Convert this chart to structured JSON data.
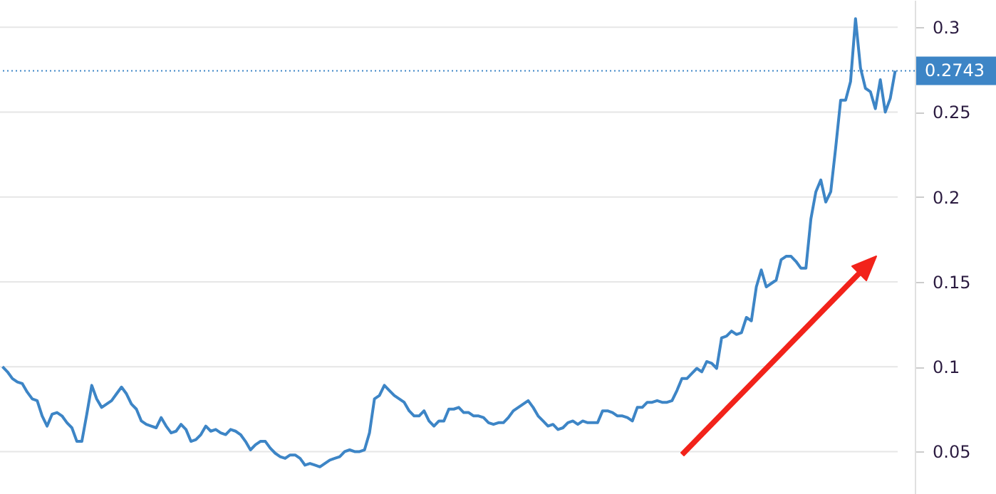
{
  "chart_data": {
    "type": "line",
    "categories": [
      null,
      null,
      null,
      null,
      null,
      null,
      null,
      null,
      null,
      null,
      null,
      null,
      null,
      null,
      null,
      null,
      null,
      null,
      null,
      null,
      null,
      null,
      null,
      null,
      null,
      null,
      null,
      null,
      null,
      null,
      null,
      null,
      null,
      null,
      null,
      null,
      null,
      null,
      null,
      null,
      null,
      null,
      null,
      null,
      null,
      null,
      null,
      null,
      null,
      null,
      null,
      null,
      null,
      null,
      null,
      null,
      null,
      null,
      null,
      null,
      null,
      null,
      null,
      null,
      null,
      null,
      null,
      null,
      null,
      null,
      null,
      null,
      null,
      null,
      null,
      null,
      null,
      null,
      null,
      null,
      null,
      null,
      null,
      null,
      null,
      null,
      null,
      null,
      null,
      null,
      null,
      null,
      null,
      null,
      null,
      null,
      null,
      null,
      null,
      null,
      null,
      null,
      null,
      null,
      null,
      null,
      null,
      null,
      null,
      null,
      null,
      null,
      null,
      null,
      null,
      null,
      null,
      null,
      null,
      null,
      null,
      null,
      null,
      null,
      null,
      null,
      null,
      null,
      null,
      null,
      null,
      null,
      null,
      null,
      null,
      null,
      null,
      null,
      null,
      null,
      null,
      null,
      null,
      null,
      null,
      null,
      null,
      null,
      null,
      null,
      null,
      null,
      null,
      null,
      null,
      null,
      null,
      null,
      null,
      null,
      null,
      null,
      null,
      null,
      null,
      null,
      null,
      null,
      null,
      null,
      null,
      null,
      null,
      null,
      null,
      null,
      null,
      null,
      null,
      null,
      null
    ],
    "series": [
      {
        "color": "#3d85c6",
        "values": [
          0.1,
          0.097,
          0.093,
          0.091,
          0.09,
          0.085,
          0.081,
          0.08,
          0.071,
          0.065,
          0.072,
          0.073,
          0.071,
          0.067,
          0.064,
          0.056,
          0.056,
          0.072,
          0.089,
          0.081,
          0.076,
          0.078,
          0.08,
          0.084,
          0.088,
          0.084,
          0.078,
          0.075,
          0.068,
          0.066,
          0.065,
          0.064,
          0.07,
          0.065,
          0.061,
          0.062,
          0.066,
          0.063,
          0.056,
          0.057,
          0.06,
          0.065,
          0.062,
          0.063,
          0.061,
          0.06,
          0.063,
          0.062,
          0.06,
          0.056,
          0.051,
          0.054,
          0.056,
          0.056,
          0.052,
          0.049,
          0.047,
          0.046,
          0.048,
          0.048,
          0.046,
          0.042,
          0.043,
          0.042,
          0.041,
          0.043,
          0.045,
          0.046,
          0.047,
          0.05,
          0.051,
          0.05,
          0.05,
          0.051,
          0.061,
          0.081,
          0.083,
          0.089,
          0.086,
          0.083,
          0.081,
          0.079,
          0.074,
          0.071,
          0.071,
          0.074,
          0.068,
          0.065,
          0.068,
          0.068,
          0.075,
          0.075,
          0.076,
          0.073,
          0.073,
          0.071,
          0.071,
          0.07,
          0.067,
          0.066,
          0.067,
          0.067,
          0.07,
          0.074,
          0.076,
          0.078,
          0.08,
          0.076,
          0.071,
          0.068,
          0.065,
          0.066,
          0.063,
          0.064,
          0.067,
          0.068,
          0.066,
          0.068,
          0.067,
          0.067,
          0.067,
          0.074,
          0.074,
          0.073,
          0.071,
          0.071,
          0.07,
          0.068,
          0.076,
          0.076,
          0.079,
          0.079,
          0.08,
          0.079,
          0.079,
          0.08,
          0.086,
          0.093,
          0.093,
          0.096,
          0.099,
          0.097,
          0.103,
          0.102,
          0.099,
          0.117,
          0.118,
          0.121,
          0.119,
          0.12,
          0.129,
          0.127,
          0.147,
          0.157,
          0.147,
          0.149,
          0.151,
          0.163,
          0.165,
          0.165,
          0.162,
          0.158,
          0.158,
          0.187,
          0.203,
          0.21,
          0.197,
          0.203,
          0.229,
          0.257,
          0.257,
          0.268,
          0.305,
          0.276,
          0.264,
          0.262,
          0.252,
          0.269,
          0.25,
          0.258,
          0.2743
        ]
      }
    ],
    "ylim": [
      0.025,
      0.316
    ],
    "yticks": [
      0.05,
      0.1,
      0.15,
      0.2,
      0.25,
      0.3
    ],
    "grid": "y",
    "ref_lines": [
      {
        "axis": "y",
        "value": 0.2743,
        "label": "0.2743",
        "color": "#3d85c6",
        "line_style": "dotted"
      }
    ]
  }
}
